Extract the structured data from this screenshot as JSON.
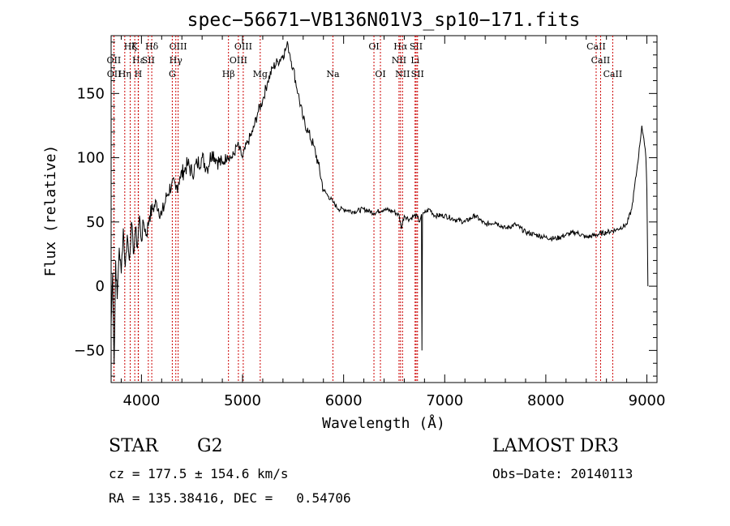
{
  "chart_data": {
    "type": "line",
    "title": "spec−56671−VB136N01V3_sp10−171.fits",
    "xlabel": "Wavelength (Å)",
    "ylabel": "Flux (relative)",
    "xlim": [
      3700,
      9100
    ],
    "ylim": [
      -75,
      195
    ],
    "x_ticks": [
      4000,
      5000,
      6000,
      7000,
      8000,
      9000
    ],
    "x_tick_labels": [
      "4000",
      "5000",
      "6000",
      "7000",
      "8000",
      "9000"
    ],
    "y_ticks": [
      -50,
      0,
      50,
      100,
      150
    ],
    "y_tick_labels": [
      "−50",
      "0",
      "50",
      "100",
      "150"
    ],
    "grid": false,
    "series": [
      {
        "name": "spectrum",
        "x": [
          3700,
          3715,
          3730,
          3745,
          3760,
          3780,
          3800,
          3820,
          3840,
          3860,
          3880,
          3900,
          3920,
          3940,
          3960,
          3980,
          4000,
          4020,
          4050,
          4080,
          4110,
          4150,
          4200,
          4250,
          4300,
          4340,
          4380,
          4420,
          4460,
          4500,
          4550,
          4600,
          4650,
          4700,
          4750,
          4800,
          4850,
          4900,
          4950,
          5000,
          5050,
          5100,
          5150,
          5200,
          5250,
          5300,
          5350,
          5400,
          5430,
          5450,
          5470,
          5500,
          5550,
          5600,
          5650,
          5700,
          5750,
          5800,
          5850,
          5900,
          5950,
          6000,
          6100,
          6200,
          6300,
          6400,
          6500,
          6550,
          6570,
          6600,
          6650,
          6700,
          6730,
          6750,
          6770,
          6775,
          6780,
          6800,
          6850,
          6900,
          7000,
          7100,
          7200,
          7300,
          7400,
          7500,
          7600,
          7700,
          7800,
          7900,
          8000,
          8100,
          8200,
          8300,
          8400,
          8500,
          8600,
          8700,
          8800,
          8850,
          8900,
          8930,
          8950,
          8970,
          8990,
          9000,
          9010
        ],
        "y": [
          -30,
          10,
          -60,
          20,
          -10,
          30,
          10,
          45,
          15,
          40,
          20,
          50,
          25,
          45,
          30,
          55,
          35,
          50,
          40,
          55,
          60,
          65,
          55,
          70,
          80,
          75,
          85,
          90,
          95,
          88,
          95,
          100,
          92,
          105,
          98,
          95,
          102,
          100,
          110,
          100,
          112,
          120,
          135,
          145,
          160,
          170,
          175,
          180,
          185,
          188,
          180,
          170,
          150,
          130,
          120,
          110,
          95,
          75,
          70,
          65,
          60,
          60,
          58,
          60,
          57,
          60,
          58,
          55,
          45,
          55,
          52,
          55,
          54,
          50,
          56,
          -50,
          55,
          57,
          60,
          55,
          55,
          52,
          50,
          55,
          48,
          50,
          45,
          48,
          42,
          40,
          38,
          37,
          40,
          42,
          38,
          40,
          42,
          44,
          48,
          60,
          90,
          110,
          125,
          115,
          100,
          75,
          0
        ]
      }
    ],
    "lines": [
      {
        "name": "Ha6",
        "label": "Hζ",
        "x": 3889,
        "row": 1
      },
      {
        "name": "Ca-K",
        "label": "K",
        "x": 3934,
        "row": 1
      },
      {
        "name": "Hd",
        "label": "Hδ",
        "x": 4102,
        "row": 1
      },
      {
        "name": "OIII-a",
        "label": "OIII",
        "x": 4363,
        "row": 1
      },
      {
        "name": "OIII-b",
        "label": "OIII",
        "x": 5007,
        "row": 1
      },
      {
        "name": "OI-a",
        "label": "OI",
        "x": 6300,
        "row": 1
      },
      {
        "name": "Ha",
        "label": "Hα",
        "x": 6563,
        "row": 1
      },
      {
        "name": "SII-a",
        "label": "SII",
        "x": 6717,
        "row": 1
      },
      {
        "name": "CaII-a",
        "label": "CaII",
        "x": 8498,
        "row": 1
      },
      {
        "name": "OII",
        "label": "OII",
        "x": 3727,
        "row": 2
      },
      {
        "name": "Hepsilon",
        "label": "Hε",
        "x": 3970,
        "row": 2
      },
      {
        "name": "SII-4068",
        "label": "SII",
        "x": 4068,
        "row": 2
      },
      {
        "name": "Hgamma",
        "label": "Hγ",
        "x": 4340,
        "row": 2
      },
      {
        "name": "OIII-c",
        "label": "OIII",
        "x": 4959,
        "row": 2
      },
      {
        "name": "NII-a",
        "label": "NII",
        "x": 6548,
        "row": 2
      },
      {
        "name": "Li",
        "label": "Li",
        "x": 6707,
        "row": 2
      },
      {
        "name": "CaII-b",
        "label": "CaII",
        "x": 8542,
        "row": 2
      },
      {
        "name": "OII-b",
        "label": "OII",
        "x": 3729,
        "row": 3
      },
      {
        "name": "Heta",
        "label": "Hη",
        "x": 3835,
        "row": 3
      },
      {
        "name": "Ca-H",
        "label": "H",
        "x": 3968,
        "row": 3
      },
      {
        "name": "G",
        "label": "G",
        "x": 4305,
        "row": 3
      },
      {
        "name": "Hbeta",
        "label": "Hβ",
        "x": 4861,
        "row": 3
      },
      {
        "name": "Mg",
        "label": "Mg",
        "x": 5175,
        "row": 3
      },
      {
        "name": "Na",
        "label": "Na",
        "x": 5894,
        "row": 3
      },
      {
        "name": "OI-b",
        "label": "OI",
        "x": 6364,
        "row": 3
      },
      {
        "name": "NII-b",
        "label": "NII",
        "x": 6583,
        "row": 3
      },
      {
        "name": "SII-b",
        "label": "SII",
        "x": 6731,
        "row": 3
      },
      {
        "name": "CaII-c",
        "label": "CaII",
        "x": 8662,
        "row": 3
      }
    ],
    "line_color": "#cc0000"
  },
  "info": {
    "class_label": "STAR",
    "subclass": "G2",
    "survey": "LAMOST DR3",
    "cz": "cz = 177.5 ± 154.6 km/s",
    "obs_date": "Obs−Date: 20140113",
    "coords": "RA = 135.38416, DEC =   0.54706"
  }
}
